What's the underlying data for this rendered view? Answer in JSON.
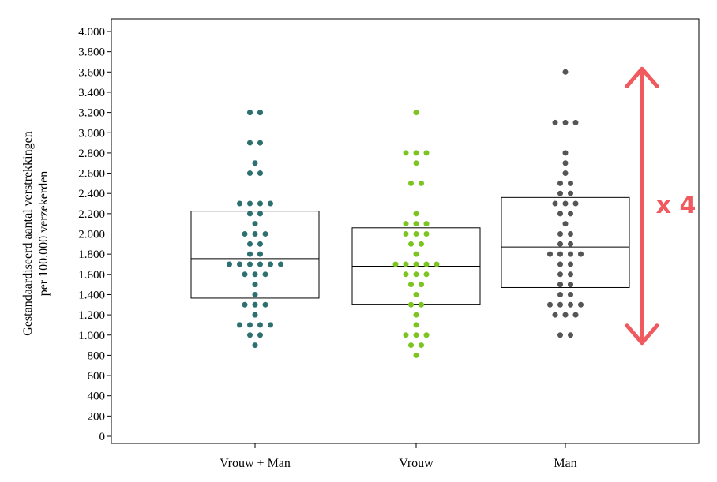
{
  "chart_data": {
    "type": "scatter",
    "subtype": "dot-plot-with-boxes",
    "title": "",
    "xlabel": "",
    "ylabel_lines": [
      "Gestandaardiseerd aantal verstrekkingen",
      "per 100.000 verzekerden"
    ],
    "ylim": [
      0,
      4100
    ],
    "yticks": [
      0,
      200,
      400,
      600,
      800,
      1000,
      1200,
      1400,
      1600,
      1800,
      2000,
      2200,
      2400,
      2600,
      2800,
      3000,
      3200,
      3400,
      3600,
      3800,
      4000
    ],
    "ytick_labels": [
      "0",
      "200",
      "400",
      "600",
      "800",
      "1.000",
      "1.200",
      "1.400",
      "1.600",
      "1.800",
      "2.000",
      "2.200",
      "2.400",
      "2.600",
      "2.800",
      "3.000",
      "3.200",
      "3.400",
      "3.600",
      "3.800",
      "4.000"
    ],
    "categories": [
      "Vrouw + Man",
      "Vrouw",
      "Man"
    ],
    "grid": false,
    "series": [
      {
        "category": "Vrouw + Man",
        "color": "#2e7070",
        "box": {
          "q1": 1365,
          "median": 1755,
          "q3": 2225
        },
        "values": [
          3200,
          3200,
          2900,
          2900,
          2700,
          2600,
          2600,
          2300,
          2300,
          2300,
          2300,
          2200,
          2200,
          2100,
          2000,
          2000,
          2000,
          1900,
          1900,
          1800,
          1800,
          1700,
          1700,
          1700,
          1700,
          1700,
          1700,
          1600,
          1600,
          1600,
          1500,
          1400,
          1300,
          1300,
          1300,
          1200,
          1100,
          1100,
          1100,
          1100,
          1000,
          1000,
          900
        ]
      },
      {
        "category": "Vrouw",
        "color": "#7cc520",
        "box": {
          "q1": 1305,
          "median": 1680,
          "q3": 2060
        },
        "values": [
          3200,
          2800,
          2800,
          2800,
          2700,
          2500,
          2500,
          2200,
          2100,
          2100,
          2100,
          2000,
          2000,
          2000,
          1900,
          1900,
          1800,
          1700,
          1700,
          1700,
          1700,
          1700,
          1600,
          1600,
          1600,
          1500,
          1500,
          1400,
          1300,
          1300,
          1200,
          1100,
          1000,
          1000,
          1000,
          900,
          900,
          800
        ]
      },
      {
        "category": "Man",
        "color": "#555555",
        "box": {
          "q1": 1470,
          "median": 1870,
          "q3": 2360
        },
        "values": [
          3600,
          3100,
          3100,
          3100,
          2800,
          2700,
          2600,
          2500,
          2500,
          2400,
          2400,
          2300,
          2300,
          2300,
          2200,
          2200,
          2100,
          2000,
          2000,
          1900,
          1900,
          1800,
          1800,
          1800,
          1800,
          1700,
          1700,
          1600,
          1600,
          1500,
          1500,
          1400,
          1400,
          1300,
          1300,
          1300,
          1300,
          1200,
          1200,
          1200,
          1000,
          1000
        ]
      }
    ],
    "annotation": {
      "text": "x 4",
      "color": "#f05a5f",
      "from": 1000,
      "to": 3600
    }
  }
}
